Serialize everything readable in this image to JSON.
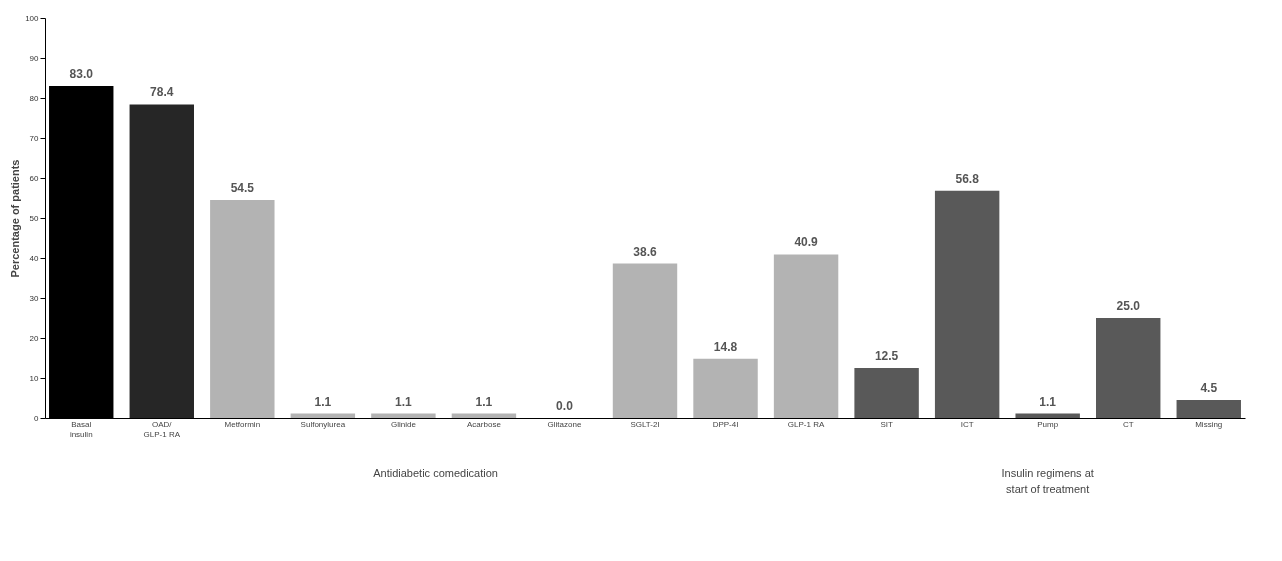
{
  "chart_data": {
    "type": "bar",
    "ylabel": "Percentage of patients",
    "categories": [
      "Basal\ninsulin",
      "OAD/\nGLP-1 RA",
      "Metformin",
      "Sulfonylurea",
      "Glinide",
      "Acarbose",
      "Glitazone",
      "SGLT-2I",
      "DPP-4I",
      "GLP-1 RA",
      "SIT",
      "ICT",
      "Pump",
      "CT",
      "Missing"
    ],
    "values": [
      83.0,
      78.4,
      54.5,
      1.1,
      1.1,
      1.1,
      0.0,
      38.6,
      14.8,
      40.9,
      12.5,
      56.8,
      1.1,
      25.0,
      4.5
    ],
    "colors": [
      "#000000",
      "#262626",
      "#b3b3b3",
      "#b3b3b3",
      "#b3b3b3",
      "#b3b3b3",
      "#b3b3b3",
      "#b3b3b3",
      "#b3b3b3",
      "#b3b3b3",
      "#595959",
      "#595959",
      "#595959",
      "#595959",
      "#595959"
    ],
    "value_labels": [
      "83.0",
      "78.4",
      "54.5",
      "1.1",
      "1.1",
      "1.1",
      "0.0",
      "38.6",
      "14.8",
      "40.9",
      "12.5",
      "56.8",
      "1.1",
      "25.0",
      "4.5"
    ],
    "ylim": [
      0,
      100
    ],
    "yticks": [
      0,
      10,
      20,
      30,
      40,
      50,
      60,
      70,
      80,
      90,
      100
    ],
    "annotations": [
      "Antidiabetic comedication",
      "Insulin regimens at start of treatment"
    ]
  }
}
